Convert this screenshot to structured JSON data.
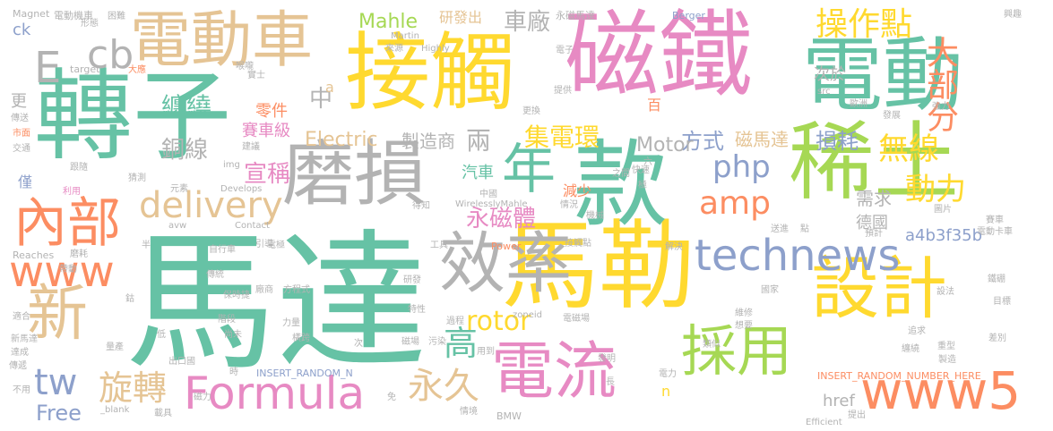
{
  "colors": {
    "green": "#66c2a5",
    "yellow": "#ffd92f",
    "pink": "#e78ac3",
    "gray": "#b3b3b3",
    "tan": "#e5c494",
    "orange": "#fc8d62",
    "lime": "#a6d854",
    "blue": "#8da0cb"
  },
  "words": [
    {
      "text": "馬達",
      "color": "green",
      "weight": 1.0
    },
    {
      "text": "轉子",
      "color": "green",
      "weight": 0.85
    },
    {
      "text": "磁鐵",
      "color": "pink",
      "weight": 0.85
    },
    {
      "text": "接觸",
      "color": "yellow",
      "weight": 0.8
    },
    {
      "text": "馬勒",
      "color": "yellow",
      "weight": 0.85
    },
    {
      "text": "款",
      "color": "green",
      "weight": 0.8
    },
    {
      "text": "電動",
      "color": "green",
      "weight": 0.75
    },
    {
      "text": "稀土",
      "color": "lime",
      "weight": 0.75
    },
    {
      "text": "電動車",
      "color": "tan",
      "weight": 0.6
    },
    {
      "text": "磨損",
      "color": "gray",
      "weight": 0.65
    },
    {
      "text": "效率",
      "color": "gray",
      "weight": 0.6
    },
    {
      "text": "設計",
      "color": "yellow",
      "weight": 0.6
    },
    {
      "text": "電流",
      "color": "pink",
      "weight": 0.55
    },
    {
      "text": "內部",
      "color": "orange",
      "weight": 0.5
    },
    {
      "text": "新",
      "color": "tan",
      "weight": 0.55
    },
    {
      "text": "年",
      "color": "green",
      "weight": 0.5
    },
    {
      "text": "採用",
      "color": "lime",
      "weight": 0.5
    },
    {
      "text": "Formula",
      "color": "pink",
      "weight": 0.45
    },
    {
      "text": "www5",
      "color": "orange",
      "weight": 0.45
    },
    {
      "text": "technews",
      "color": "blue",
      "weight": 0.4
    },
    {
      "text": "www",
      "color": "orange",
      "weight": 0.45
    },
    {
      "text": "delivery",
      "color": "tan",
      "weight": 0.35
    },
    {
      "text": "E",
      "color": "gray",
      "weight": 0.4
    },
    {
      "text": "cb",
      "color": "gray",
      "weight": 0.35
    },
    {
      "text": "tw",
      "color": "blue",
      "weight": 0.3
    },
    {
      "text": "旋轉",
      "color": "tan",
      "weight": 0.3
    },
    {
      "text": "永久",
      "color": "tan",
      "weight": 0.35
    },
    {
      "text": "高",
      "color": "green",
      "weight": 0.3
    },
    {
      "text": "操作點",
      "color": "yellow",
      "weight": 0.3
    },
    {
      "text": "大部分",
      "color": "orange",
      "weight": 0.3
    },
    {
      "text": "無線",
      "color": "yellow",
      "weight": 0.28
    },
    {
      "text": "動力",
      "color": "yellow",
      "weight": 0.28
    },
    {
      "text": "amp",
      "color": "orange",
      "weight": 0.3
    },
    {
      "text": "php",
      "color": "blue",
      "weight": 0.28
    },
    {
      "text": "rotor",
      "color": "yellow",
      "weight": 0.25
    },
    {
      "text": "永磁體",
      "color": "pink",
      "weight": 0.22
    },
    {
      "text": "集電環",
      "color": "yellow",
      "weight": 0.22
    },
    {
      "text": "纏繞",
      "color": "green",
      "weight": 0.22
    },
    {
      "text": "銅線",
      "color": "gray",
      "weight": 0.22
    },
    {
      "text": "宣稱",
      "color": "pink",
      "weight": 0.22
    },
    {
      "text": "兩",
      "color": "gray",
      "weight": 0.22
    },
    {
      "text": "中",
      "color": "gray",
      "weight": 0.2
    },
    {
      "text": "方式",
      "color": "blue",
      "weight": 0.2
    },
    {
      "text": "損耗",
      "color": "blue",
      "weight": 0.2
    },
    {
      "text": "車廠",
      "color": "gray",
      "weight": 0.2
    },
    {
      "text": "Mahle",
      "color": "lime",
      "weight": 0.2
    },
    {
      "text": "Electric",
      "color": "tan",
      "weight": 0.18
    },
    {
      "text": "製造商",
      "color": "gray",
      "weight": 0.17
    },
    {
      "text": "Motor",
      "color": "gray",
      "weight": 0.17
    },
    {
      "text": "磁馬達",
      "color": "tan",
      "weight": 0.15
    },
    {
      "text": "需求",
      "color": "gray",
      "weight": 0.15
    },
    {
      "text": "a4b3f35b",
      "color": "blue",
      "weight": 0.14
    },
    {
      "text": "汽車",
      "color": "green",
      "weight": 0.13
    },
    {
      "text": "減少",
      "color": "orange",
      "weight": 0.13
    },
    {
      "text": "德國",
      "color": "gray",
      "weight": 0.13
    },
    {
      "text": "零件",
      "color": "orange",
      "weight": 0.14
    },
    {
      "text": "賽車級",
      "color": "pink",
      "weight": 0.14
    },
    {
      "text": "研發出",
      "color": "tan",
      "weight": 0.12
    },
    {
      "text": "次於",
      "color": "gray",
      "weight": 0.12
    },
    {
      "text": "href",
      "color": "gray",
      "weight": 0.12
    },
    {
      "text": "Free",
      "color": "blue",
      "weight": 0.15
    },
    {
      "text": "ck",
      "color": "blue",
      "weight": 0.12
    },
    {
      "text": "更",
      "color": "gray",
      "weight": 0.12
    },
    {
      "text": "僅",
      "color": "blue",
      "weight": 0.12
    },
    {
      "text": "n",
      "color": "yellow",
      "weight": 0.12
    },
    {
      "text": "a",
      "color": "tan",
      "weight": 0.12
    },
    {
      "text": "百",
      "color": "orange",
      "weight": 0.12
    },
    {
      "text": "INSERT_RANDOM_NUMBER_HERE",
      "color": "orange",
      "weight": 0.08
    },
    {
      "text": "INSERT_RANDOM_N",
      "color": "blue",
      "weight": 0.08
    },
    {
      "text": "電動機車",
      "color": "gray",
      "weight": 0.08
    },
    {
      "text": "永磁馬達",
      "color": "gray",
      "weight": 0.08
    },
    {
      "text": "Magnet",
      "color": "gray",
      "weight": 0.07
    },
    {
      "text": "形態",
      "color": "gray",
      "weight": 0.06
    },
    {
      "text": "困難",
      "color": "gray",
      "weight": 0.06
    },
    {
      "text": "Berger",
      "color": "blue",
      "weight": 0.07
    },
    {
      "text": "興趣",
      "color": "gray",
      "weight": 0.06
    },
    {
      "text": "電子",
      "color": "gray",
      "weight": 0.06
    },
    {
      "text": "src",
      "color": "gray",
      "weight": 0.06
    },
    {
      "text": "歐洲",
      "color": "gray",
      "weight": 0.06
    },
    {
      "text": "強力",
      "color": "gray",
      "weight": 0.06
    },
    {
      "text": "發展",
      "color": "gray",
      "weight": 0.06
    },
    {
      "text": "Martin",
      "color": "gray",
      "weight": 0.07
    },
    {
      "text": "來源",
      "color": "gray",
      "weight": 0.06
    },
    {
      "text": "Highly",
      "color": "gray",
      "weight": 0.06
    },
    {
      "text": "target",
      "color": "gray",
      "weight": 0.07
    },
    {
      "text": "大應",
      "color": "orange",
      "weight": 0.06
    },
    {
      "text": "實士",
      "color": "gray",
      "weight": 0.06
    },
    {
      "text": "喉嚨",
      "color": "gray",
      "weight": 0.06
    },
    {
      "text": "提供",
      "color": "gray",
      "weight": 0.06
    },
    {
      "text": "更換",
      "color": "gray",
      "weight": 0.06
    },
    {
      "text": "傳送",
      "color": "gray",
      "weight": 0.06
    },
    {
      "text": "市面",
      "color": "orange",
      "weight": 0.06
    },
    {
      "text": "交通",
      "color": "gray",
      "weight": 0.06
    },
    {
      "text": "跟隨",
      "color": "gray",
      "weight": 0.06
    },
    {
      "text": "猜測",
      "color": "gray",
      "weight": 0.06
    },
    {
      "text": "利用",
      "color": "pink",
      "weight": 0.06
    },
    {
      "text": "元素",
      "color": "gray",
      "weight": 0.06
    },
    {
      "text": "img",
      "color": "gray",
      "weight": 0.06
    },
    {
      "text": "Develops",
      "color": "gray",
      "weight": 0.06
    },
    {
      "text": "建議",
      "color": "gray",
      "weight": 0.06
    },
    {
      "text": "快速",
      "color": "gray",
      "weight": 0.06
    },
    {
      "text": "六",
      "color": "gray",
      "weight": 0.06
    },
    {
      "text": "之間",
      "color": "gray",
      "weight": 0.06
    },
    {
      "text": "極",
      "color": "gray",
      "weight": 0.06
    },
    {
      "text": "中國",
      "color": "gray",
      "weight": 0.06
    },
    {
      "text": "WirelesslyMahle",
      "color": "gray",
      "weight": 0.06
    },
    {
      "text": "得知",
      "color": "gray",
      "weight": 0.06
    },
    {
      "text": "情況",
      "color": "gray",
      "weight": 0.06
    },
    {
      "text": "機械",
      "color": "gray",
      "weight": 0.06
    },
    {
      "text": "圖片",
      "color": "gray",
      "weight": 0.06
    },
    {
      "text": "賽車",
      "color": "gray",
      "weight": 0.06
    },
    {
      "text": "送進",
      "color": "gray",
      "weight": 0.06
    },
    {
      "text": "預計",
      "color": "gray",
      "weight": 0.06
    },
    {
      "text": "電動卡車",
      "color": "gray",
      "weight": 0.06
    },
    {
      "text": "avw",
      "color": "gray",
      "weight": 0.06
    },
    {
      "text": "Contact",
      "color": "gray",
      "weight": 0.06
    },
    {
      "text": "引導",
      "color": "gray",
      "weight": 0.06
    },
    {
      "text": "工具",
      "color": "gray",
      "weight": 0.06
    },
    {
      "text": "接觸點",
      "color": "gray",
      "weight": 0.06
    },
    {
      "text": "點",
      "color": "gray",
      "weight": 0.06
    },
    {
      "text": "Reaches",
      "color": "gray",
      "weight": 0.06
    },
    {
      "text": "磨耗",
      "color": "gray",
      "weight": 0.06
    },
    {
      "text": "自行車",
      "color": "gray",
      "weight": 0.06
    },
    {
      "text": "電極",
      "color": "gray",
      "weight": 0.06
    },
    {
      "text": "Power",
      "color": "orange",
      "weight": 0.06
    },
    {
      "text": "解決",
      "color": "gray",
      "weight": 0.06
    },
    {
      "text": "鐵硼",
      "color": "gray",
      "weight": 0.06
    },
    {
      "text": "帶動",
      "color": "gray",
      "weight": 0.06
    },
    {
      "text": "傳統",
      "color": "gray",
      "weight": 0.06
    },
    {
      "text": "保時捷",
      "color": "gray",
      "weight": 0.06
    },
    {
      "text": "廠商",
      "color": "gray",
      "weight": 0.06
    },
    {
      "text": "方程式",
      "color": "gray",
      "weight": 0.06
    },
    {
      "text": "研發",
      "color": "gray",
      "weight": 0.06
    },
    {
      "text": "國家",
      "color": "gray",
      "weight": 0.06
    },
    {
      "text": "設法",
      "color": "gray",
      "weight": 0.06
    },
    {
      "text": "目標",
      "color": "gray",
      "weight": 0.06
    },
    {
      "text": "適合",
      "color": "gray",
      "weight": 0.06
    },
    {
      "text": "階段",
      "color": "gray",
      "weight": 0.06
    },
    {
      "text": "尚未",
      "color": "gray",
      "weight": 0.06
    },
    {
      "text": "力量",
      "color": "gray",
      "weight": 0.06
    },
    {
      "text": "過程",
      "color": "gray",
      "weight": 0.06
    },
    {
      "text": "zoneid",
      "color": "gray",
      "weight": 0.06
    },
    {
      "text": "電磁場",
      "color": "gray",
      "weight": 0.06
    },
    {
      "text": "維修",
      "color": "gray",
      "weight": 0.06
    },
    {
      "text": "想要",
      "color": "gray",
      "weight": 0.06
    },
    {
      "text": "新馬達",
      "color": "gray",
      "weight": 0.06
    },
    {
      "text": "達成",
      "color": "gray",
      "weight": 0.06
    },
    {
      "text": "傳遞",
      "color": "gray",
      "weight": 0.06
    },
    {
      "text": "量產",
      "color": "gray",
      "weight": 0.06
    },
    {
      "text": "低",
      "color": "gray",
      "weight": 0.06
    },
    {
      "text": "次",
      "color": "gray",
      "weight": 0.06
    },
    {
      "text": "用到",
      "color": "gray",
      "weight": 0.06
    },
    {
      "text": "磁場",
      "color": "gray",
      "weight": 0.06
    },
    {
      "text": "污染",
      "color": "gray",
      "weight": 0.06
    },
    {
      "text": "特性",
      "color": "gray",
      "weight": 0.06
    },
    {
      "text": "出口國",
      "color": "gray",
      "weight": 0.06
    },
    {
      "text": "類似",
      "color": "gray",
      "weight": 0.06
    },
    {
      "text": "重型",
      "color": "gray",
      "weight": 0.06
    },
    {
      "text": "製造",
      "color": "gray",
      "weight": 0.06
    },
    {
      "text": "纏繞",
      "color": "gray",
      "weight": 0.06
    },
    {
      "text": "追求",
      "color": "gray",
      "weight": 0.06
    },
    {
      "text": "差別",
      "color": "gray",
      "weight": 0.06
    },
    {
      "text": "發明",
      "color": "gray",
      "weight": 0.06
    },
    {
      "text": "電力",
      "color": "gray",
      "weight": 0.06
    },
    {
      "text": "長",
      "color": "gray",
      "weight": 0.06
    },
    {
      "text": "不用",
      "color": "gray",
      "weight": 0.06
    },
    {
      "text": "_blank",
      "color": "gray",
      "weight": 0.06
    },
    {
      "text": "時",
      "color": "gray",
      "weight": 0.06
    },
    {
      "text": "磁力",
      "color": "gray",
      "weight": 0.06
    },
    {
      "text": "免",
      "color": "gray",
      "weight": 0.06
    },
    {
      "text": "Efficient",
      "color": "gray",
      "weight": 0.06
    },
    {
      "text": "提出",
      "color": "gray",
      "weight": 0.06
    },
    {
      "text": "載具",
      "color": "gray",
      "weight": 0.06
    },
    {
      "text": "情境",
      "color": "gray",
      "weight": 0.06
    },
    {
      "text": "BMW",
      "color": "gray",
      "weight": 0.06
    },
    {
      "text": "橫跨",
      "color": "gray",
      "weight": 0.06
    },
    {
      "text": "鈷",
      "color": "gray",
      "weight": 0.06
    },
    {
      "text": "半",
      "color": "gray",
      "weight": 0.06
    }
  ]
}
